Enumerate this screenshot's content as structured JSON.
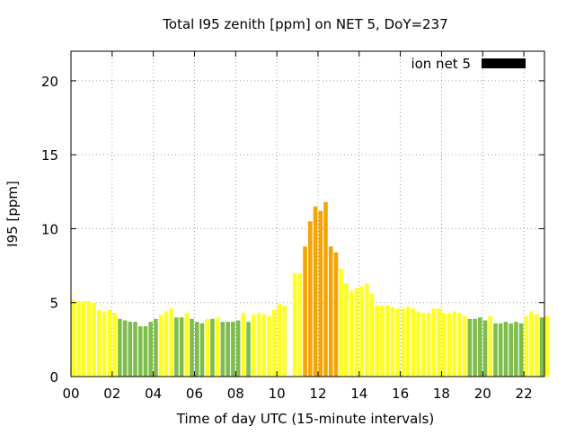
{
  "chart_data": {
    "type": "bar",
    "title": "Total I95 zenith [ppm] on NET 5, DoY=237",
    "xlabel": "Time of day UTC (15-minute intervals)",
    "ylabel": "I95 [ppm]",
    "xlim": [
      0,
      23
    ],
    "ylim": [
      0,
      22
    ],
    "xticks": [
      0,
      2,
      4,
      6,
      8,
      10,
      12,
      14,
      16,
      18,
      20,
      22
    ],
    "xtick_labels": [
      "00",
      "02",
      "04",
      "06",
      "08",
      "10",
      "12",
      "14",
      "16",
      "18",
      "20",
      "22"
    ],
    "yticks": [
      0,
      5,
      10,
      15,
      20
    ],
    "ytick_labels": [
      "0",
      "5",
      "10",
      "15",
      "20"
    ],
    "grid": true,
    "legend": {
      "label": "ion net 5",
      "color": "#000000",
      "placement": "top-right"
    },
    "colors": {
      "green": "#7cbd4b",
      "yellow": "#ffff22",
      "orange": "#f5a400"
    },
    "bar_width_hours": 0.2,
    "values": [
      5.2,
      5.1,
      5.1,
      5.1,
      5.0,
      4.5,
      4.4,
      4.5,
      4.3,
      3.9,
      3.8,
      3.7,
      3.7,
      3.4,
      3.4,
      3.7,
      3.9,
      4.2,
      4.4,
      4.6,
      4.0,
      4.0,
      4.3,
      3.9,
      3.7,
      3.6,
      3.9,
      3.9,
      4.0,
      3.7,
      3.7,
      3.7,
      3.8,
      4.3,
      3.7,
      4.2,
      4.3,
      4.2,
      4.1,
      4.5,
      4.9,
      4.8,
      null,
      7.0,
      7.0,
      8.8,
      10.5,
      11.5,
      11.2,
      11.8,
      8.8,
      8.4,
      7.3,
      6.3,
      5.8,
      6.0,
      6.1,
      6.3,
      5.6,
      4.8,
      4.8,
      4.8,
      4.7,
      4.6,
      4.6,
      4.7,
      4.6,
      4.4,
      4.3,
      4.3,
      4.6,
      4.6,
      4.3,
      4.3,
      4.4,
      4.3,
      4.1,
      3.9,
      3.9,
      4.0,
      3.8,
      4.1,
      3.6,
      3.6,
      3.7,
      3.6,
      3.7,
      3.6,
      4.1,
      4.4,
      4.2,
      4.0,
      4.1
    ],
    "bar_colors": [
      "yellow",
      "yellow",
      "yellow",
      "yellow",
      "yellow",
      "yellow",
      "yellow",
      "yellow",
      "yellow",
      "green",
      "green",
      "green",
      "green",
      "green",
      "green",
      "green",
      "green",
      "yellow",
      "yellow",
      "yellow",
      "green",
      "green",
      "yellow",
      "green",
      "green",
      "green",
      "yellow",
      "green",
      "yellow",
      "green",
      "green",
      "green",
      "green",
      "yellow",
      "green",
      "yellow",
      "yellow",
      "yellow",
      "yellow",
      "yellow",
      "yellow",
      "yellow",
      "none",
      "yellow",
      "yellow",
      "orange",
      "orange",
      "orange",
      "orange",
      "orange",
      "orange",
      "orange",
      "yellow",
      "yellow",
      "yellow",
      "yellow",
      "yellow",
      "yellow",
      "yellow",
      "yellow",
      "yellow",
      "yellow",
      "yellow",
      "yellow",
      "yellow",
      "yellow",
      "yellow",
      "yellow",
      "yellow",
      "yellow",
      "yellow",
      "yellow",
      "yellow",
      "yellow",
      "yellow",
      "yellow",
      "yellow",
      "green",
      "green",
      "green",
      "green",
      "yellow",
      "green",
      "green",
      "green",
      "green",
      "green",
      "green",
      "yellow",
      "yellow",
      "yellow",
      "green",
      "yellow"
    ]
  }
}
